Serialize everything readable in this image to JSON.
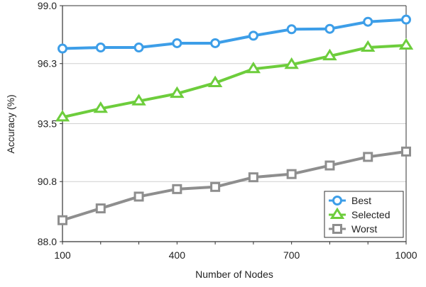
{
  "chart_data": {
    "type": "line",
    "title": "",
    "xlabel": "Number of Nodes",
    "ylabel": "Accuracy (%)",
    "x": [
      100,
      200,
      300,
      400,
      500,
      600,
      700,
      800,
      900,
      1000
    ],
    "xlim": [
      100,
      1000
    ],
    "ylim": [
      88.0,
      99.0
    ],
    "xticks": [
      100,
      400,
      700,
      1000
    ],
    "xtick_labels": [
      "100",
      "400",
      "700",
      "1000"
    ],
    "yticks": [
      88.0,
      90.8,
      93.5,
      96.3,
      99.0
    ],
    "ytick_labels": [
      "88.0",
      "90.8",
      "93.5",
      "96.3",
      "99.0"
    ],
    "grid": "horizontal",
    "legend_position": "bottom-right",
    "series": [
      {
        "name": "Best",
        "color": "#3d9ee8",
        "marker": "circle",
        "values": [
          97.0,
          97.05,
          97.05,
          97.25,
          97.25,
          97.6,
          97.9,
          97.92,
          98.25,
          98.35
        ]
      },
      {
        "name": "Selected",
        "color": "#6dcd3c",
        "marker": "triangle",
        "values": [
          93.8,
          94.2,
          94.55,
          94.9,
          95.4,
          96.05,
          96.25,
          96.65,
          97.05,
          97.15
        ]
      },
      {
        "name": "Worst",
        "color": "#8e8e8e",
        "marker": "square",
        "values": [
          89.0,
          89.55,
          90.1,
          90.45,
          90.55,
          91.0,
          91.15,
          91.55,
          91.95,
          92.2
        ]
      }
    ]
  }
}
